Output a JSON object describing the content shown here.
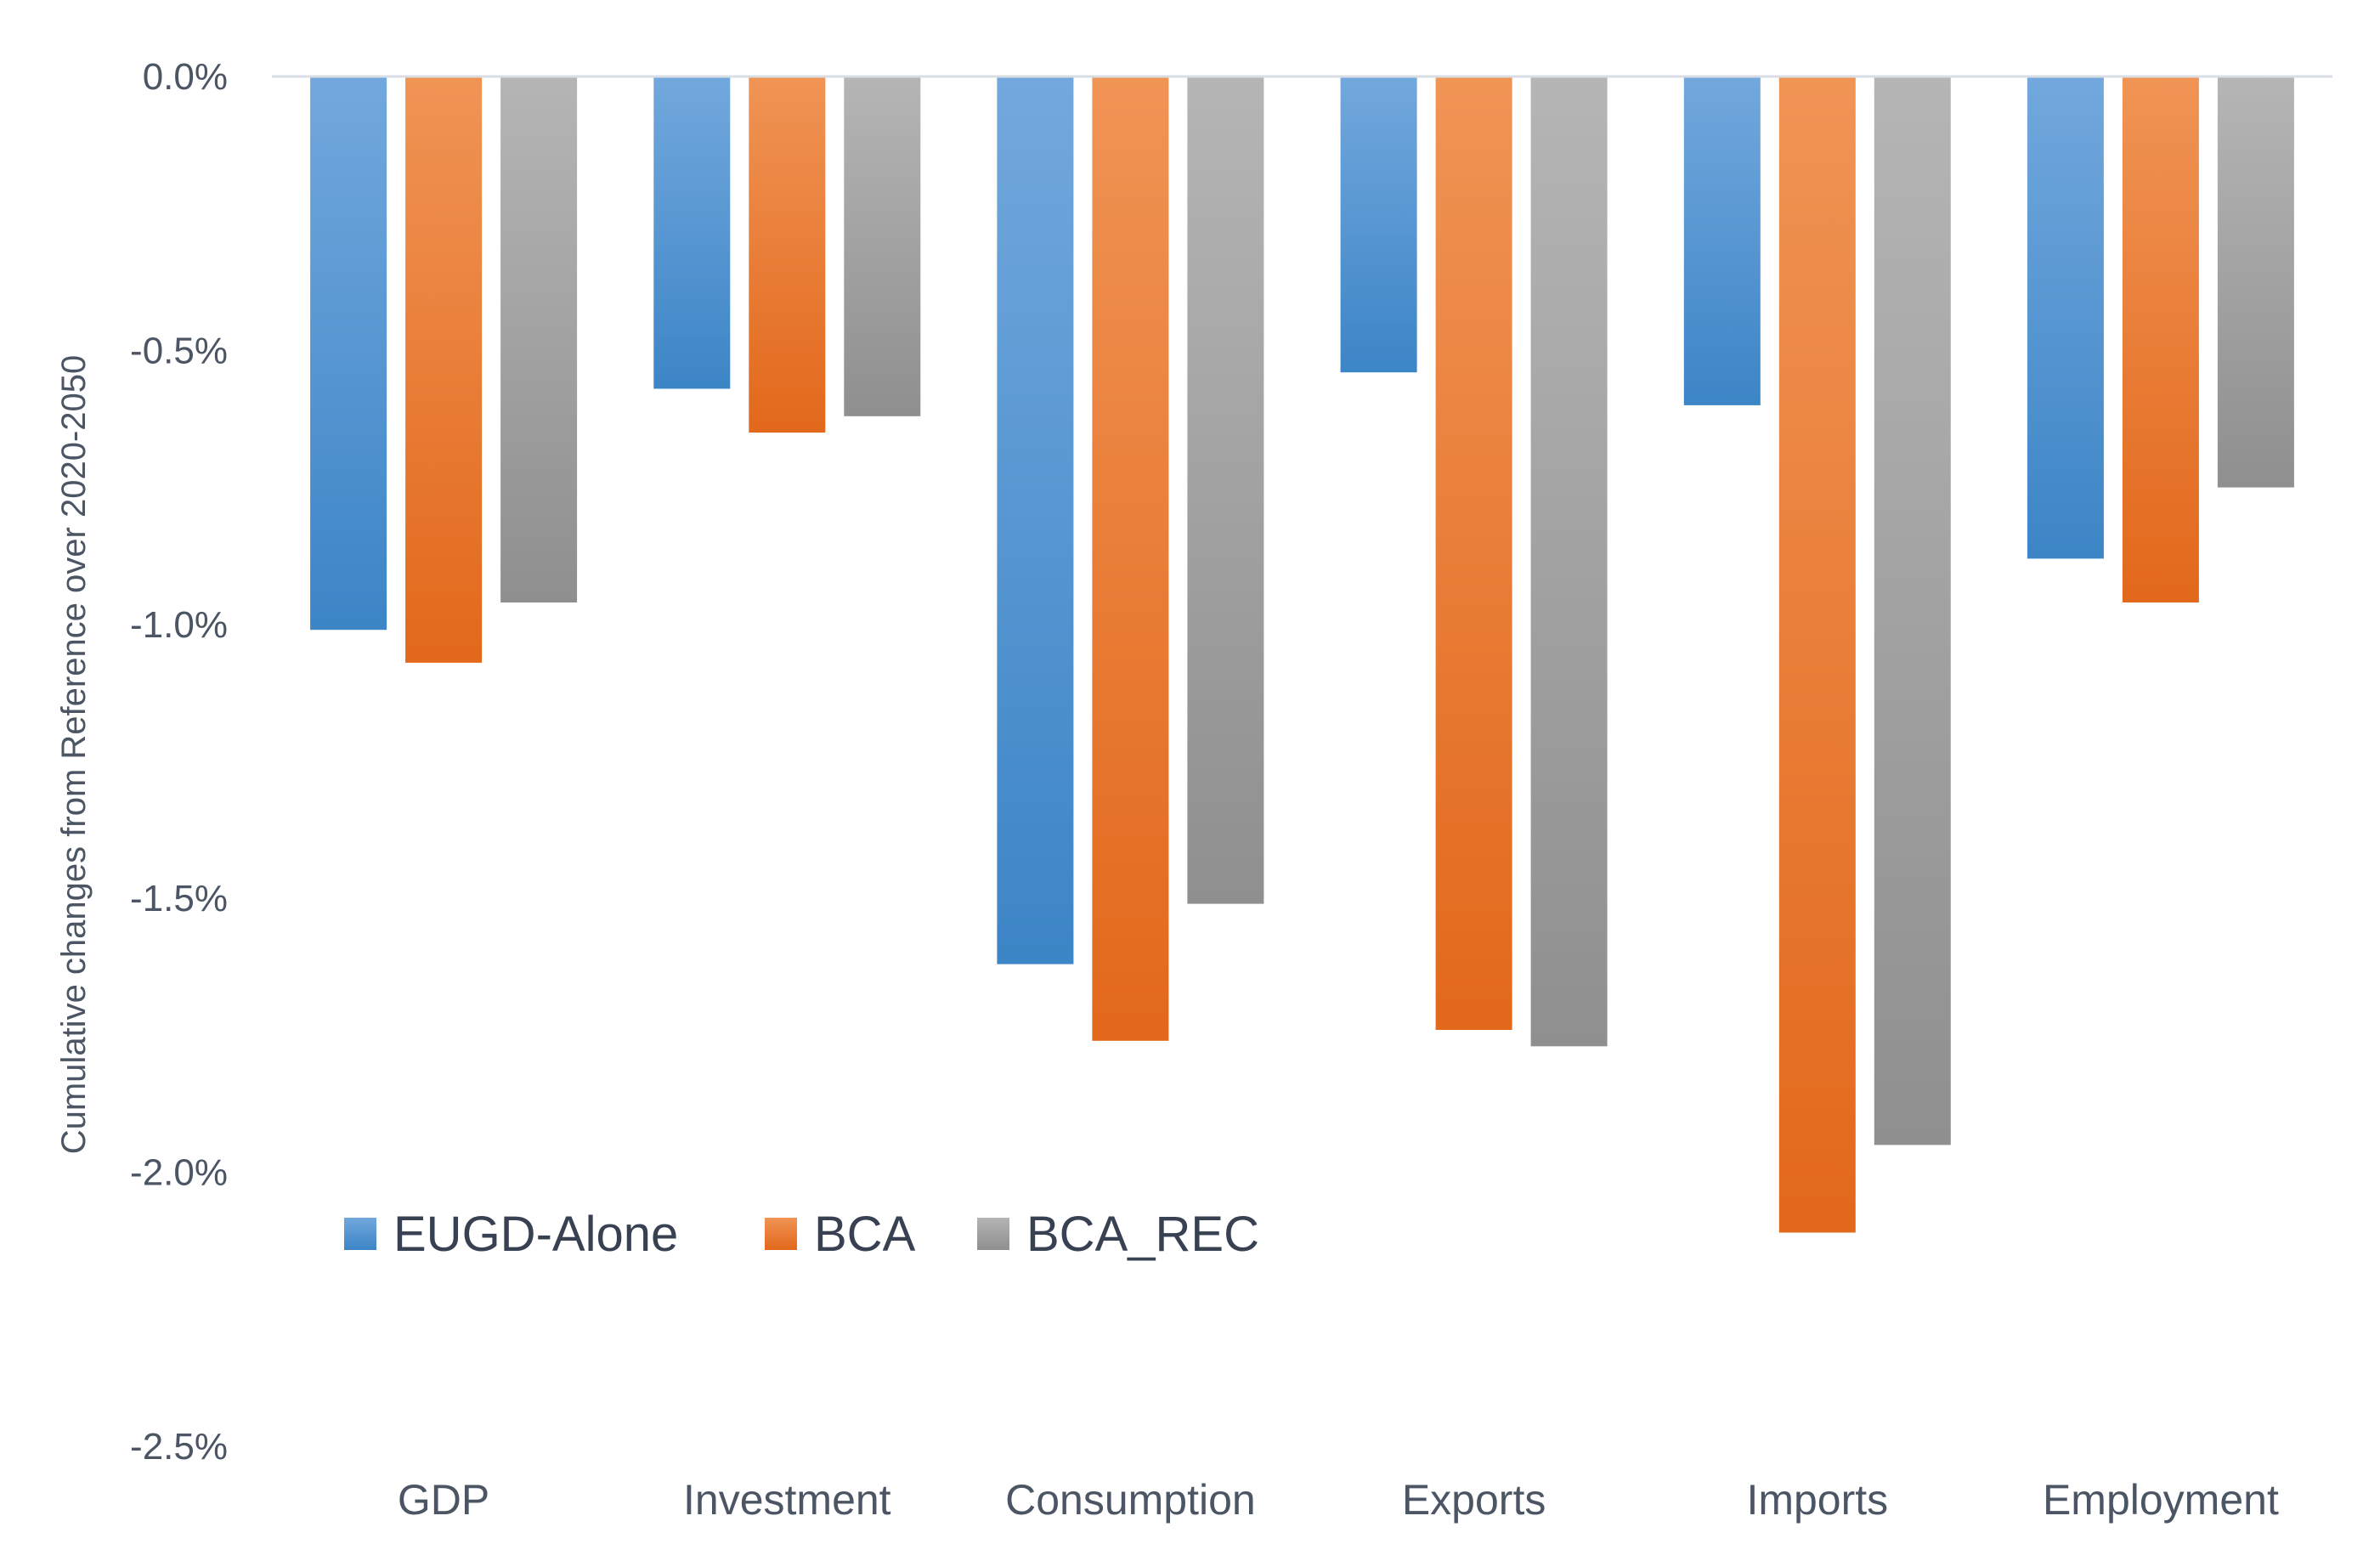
{
  "chart_data": {
    "type": "bar",
    "title": "",
    "xlabel": "",
    "ylabel": "Cumulative changes from Reference over 2020-2050",
    "ylim": [
      -2.5,
      0.0
    ],
    "y_ticks": [
      0.0,
      -0.5,
      -1.0,
      -1.5,
      -2.0,
      -2.5
    ],
    "y_tick_labels": [
      "0.0%",
      "-0.5%",
      "-1.0%",
      "-1.5%",
      "-2.0%",
      "-2.5%"
    ],
    "categories": [
      "GDP",
      "Investment",
      "Consumption",
      "Exports",
      "Imports",
      "Employment"
    ],
    "series": [
      {
        "name": "EUGD-Alone",
        "color": "#5b9bd5",
        "gradient_top": "#72a8dd",
        "gradient_bottom": "#3c85c6",
        "values": [
          -1.01,
          -0.57,
          -1.62,
          -0.54,
          -0.6,
          -0.88
        ]
      },
      {
        "name": "BCA",
        "color": "#ed7d31",
        "gradient_top": "#f09455",
        "gradient_bottom": "#e2681b",
        "values": [
          -1.07,
          -0.65,
          -1.76,
          -1.74,
          -2.11,
          -0.96
        ]
      },
      {
        "name": "BCA_REC",
        "color": "#a5a5a5",
        "gradient_top": "#b5b5b5",
        "gradient_bottom": "#8f8f8f",
        "values": [
          -0.96,
          -0.62,
          -1.51,
          -1.77,
          -1.95,
          -0.75
        ]
      }
    ],
    "grid": false,
    "legend_position": "lower-left",
    "colors": {
      "axis_line": "#d9dee5",
      "text": "#4b5563"
    }
  }
}
